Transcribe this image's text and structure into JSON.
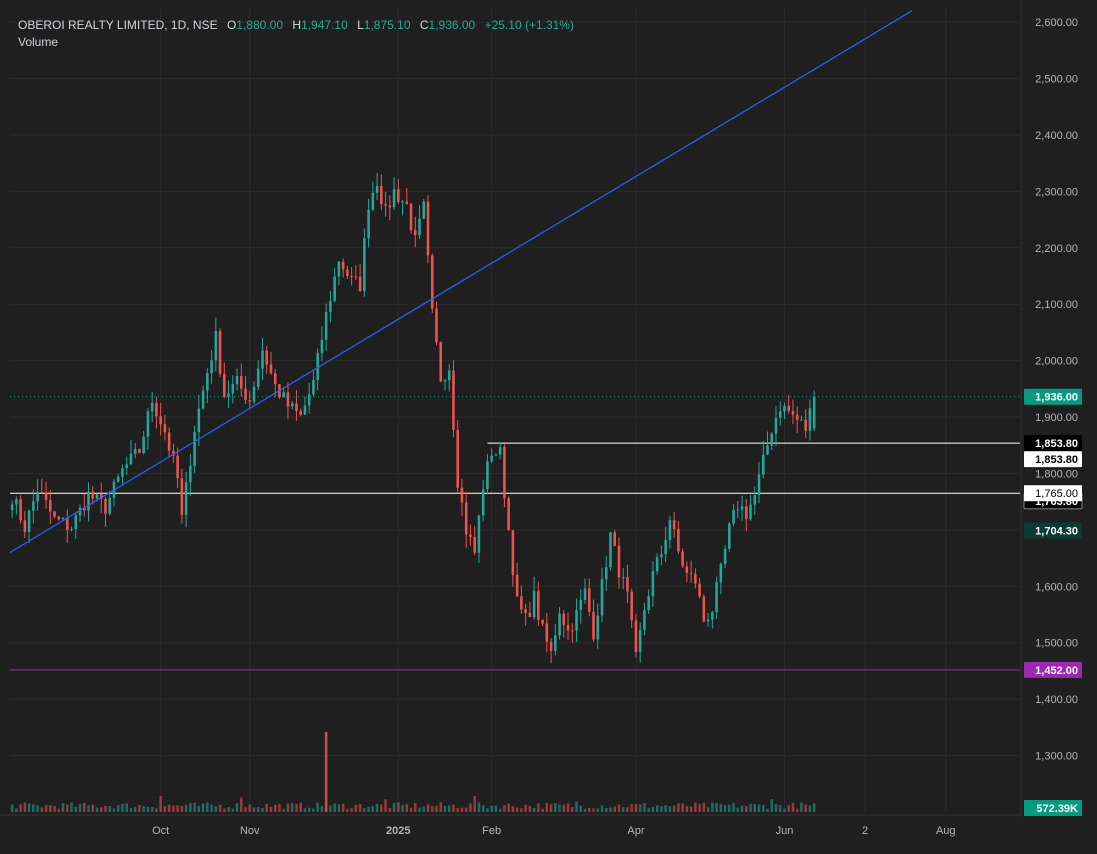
{
  "header": {
    "symbol": "OBEROI REALTY LIMITED, 1D, NSE",
    "o_key": "O",
    "o_val": "1,880.00",
    "h_key": "H",
    "h_val": "1,947.10",
    "l_key": "L",
    "l_val": "1,875.10",
    "c_key": "C",
    "c_val": "1,936.00",
    "change": "+25.10 (+1.31%)",
    "volume_label": "Volume"
  },
  "colors": {
    "background": "#1f1f1f",
    "grid": "#2b2b2b",
    "up": "#26a69a",
    "down": "#ef5350",
    "trendline": "#2962ff",
    "support": "#9c27b0",
    "level": "#ffffff",
    "axis_text": "#b2b5be",
    "last_price": "#089981",
    "dark_label": "#0c3b33"
  },
  "chart_data": {
    "type": "candlestick",
    "y_axis": {
      "ticks": [
        "1,300.00",
        "1,400.00",
        "1,500.00",
        "1,600.00",
        "1,700.00",
        "1,800.00",
        "1,900.00",
        "2,000.00",
        "2,100.00",
        "2,200.00",
        "2,300.00",
        "2,400.00",
        "2,500.00",
        "2,600.00"
      ],
      "tick_values": [
        1300,
        1400,
        1500,
        1600,
        1700,
        1800,
        1900,
        2000,
        2100,
        2200,
        2300,
        2400,
        2500,
        2600
      ],
      "range": [
        1200,
        2625
      ]
    },
    "x_axis": {
      "labels": [
        "Oct",
        "Nov",
        "2025",
        "Feb",
        "Apr",
        "Jun",
        "2",
        "Aug"
      ],
      "label_index": [
        35,
        56,
        91,
        113,
        147,
        182,
        201,
        220
      ],
      "bold": [
        false,
        false,
        true,
        false,
        false,
        false,
        false,
        false
      ],
      "bar_count": 238
    },
    "series_anchor": [
      [
        0,
        1760
      ],
      [
        3,
        1705
      ],
      [
        6,
        1772
      ],
      [
        10,
        1718
      ],
      [
        14,
        1705
      ],
      [
        18,
        1762
      ],
      [
        22,
        1740
      ],
      [
        26,
        1805
      ],
      [
        30,
        1840
      ],
      [
        33,
        1930
      ],
      [
        36,
        1875
      ],
      [
        39,
        1790
      ],
      [
        40,
        1720
      ],
      [
        43,
        1880
      ],
      [
        46,
        1980
      ],
      [
        48,
        2040
      ],
      [
        50,
        1940
      ],
      [
        53,
        1960
      ],
      [
        56,
        1930
      ],
      [
        59,
        2020
      ],
      [
        62,
        1955
      ],
      [
        65,
        1920
      ],
      [
        68,
        1900
      ],
      [
        71,
        1960
      ],
      [
        74,
        2080
      ],
      [
        77,
        2180
      ],
      [
        80,
        2140
      ],
      [
        82,
        2135
      ],
      [
        84,
        2280
      ],
      [
        86,
        2320
      ],
      [
        88,
        2260
      ],
      [
        90,
        2300
      ],
      [
        93,
        2275
      ],
      [
        95,
        2210
      ],
      [
        97,
        2270
      ],
      [
        99,
        2080
      ],
      [
        101,
        1970
      ],
      [
        103,
        1990
      ],
      [
        105,
        1790
      ],
      [
        107,
        1700
      ],
      [
        109,
        1660
      ],
      [
        111,
        1780
      ],
      [
        113,
        1840
      ],
      [
        115,
        1835
      ],
      [
        117,
        1700
      ],
      [
        119,
        1570
      ],
      [
        121,
        1540
      ],
      [
        123,
        1580
      ],
      [
        125,
        1520
      ],
      [
        127,
        1480
      ],
      [
        129,
        1560
      ],
      [
        131,
        1520
      ],
      [
        133,
        1550
      ],
      [
        135,
        1590
      ],
      [
        137,
        1520
      ],
      [
        139,
        1600
      ],
      [
        141,
        1690
      ],
      [
        143,
        1630
      ],
      [
        145,
        1580
      ],
      [
        147,
        1470
      ],
      [
        149,
        1560
      ],
      [
        151,
        1620
      ],
      [
        153,
        1660
      ],
      [
        155,
        1720
      ],
      [
        157,
        1660
      ],
      [
        159,
        1620
      ],
      [
        161,
        1610
      ],
      [
        163,
        1540
      ],
      [
        165,
        1560
      ],
      [
        167,
        1625
      ],
      [
        169,
        1700
      ],
      [
        171,
        1745
      ],
      [
        173,
        1730
      ],
      [
        175,
        1760
      ],
      [
        177,
        1820
      ],
      [
        179,
        1880
      ],
      [
        181,
        1920
      ],
      [
        183,
        1910
      ],
      [
        185,
        1895
      ],
      [
        187,
        1880
      ],
      [
        189,
        1936
      ]
    ],
    "last_candle": {
      "o": 1880.0,
      "h": 1947.1,
      "l": 1875.1,
      "c": 1936.0
    },
    "volume": {
      "spike_bar": 74,
      "last_label": "572.39K",
      "peaks": [
        [
          35,
          2.0
        ],
        [
          54,
          1.8
        ],
        [
          74,
          10
        ],
        [
          88,
          1.6
        ],
        [
          109,
          2.0
        ],
        [
          133,
          1.3
        ],
        [
          179,
          1.6
        ]
      ]
    },
    "trendline": {
      "x1": 0,
      "y1": 1660,
      "x2": 212,
      "y2": 2620
    },
    "levels": [
      {
        "value": 1853.8,
        "label": "1,853.80",
        "start_bar": 112,
        "style": "white"
      },
      {
        "value": 1765.0,
        "label": "1,765.00",
        "start_bar": 0,
        "style": "white"
      },
      {
        "value": 1452.0,
        "label": "1,452.00",
        "start_bar": 0,
        "style": "purple"
      }
    ],
    "price_labels": [
      {
        "value": 1936.0,
        "label": "1,936.00",
        "style": "last"
      },
      {
        "value": 1853.8,
        "label": "1,853.80",
        "style": "white-outline"
      },
      {
        "value": 1763.8,
        "label": "1,763.80",
        "style": "black"
      },
      {
        "value": 1704.3,
        "label": "1,704.30",
        "style": "dark-green"
      },
      {
        "value": 1452.0,
        "label": "1,452.00",
        "style": "purple"
      }
    ],
    "grid": true,
    "legend": "top-left"
  }
}
